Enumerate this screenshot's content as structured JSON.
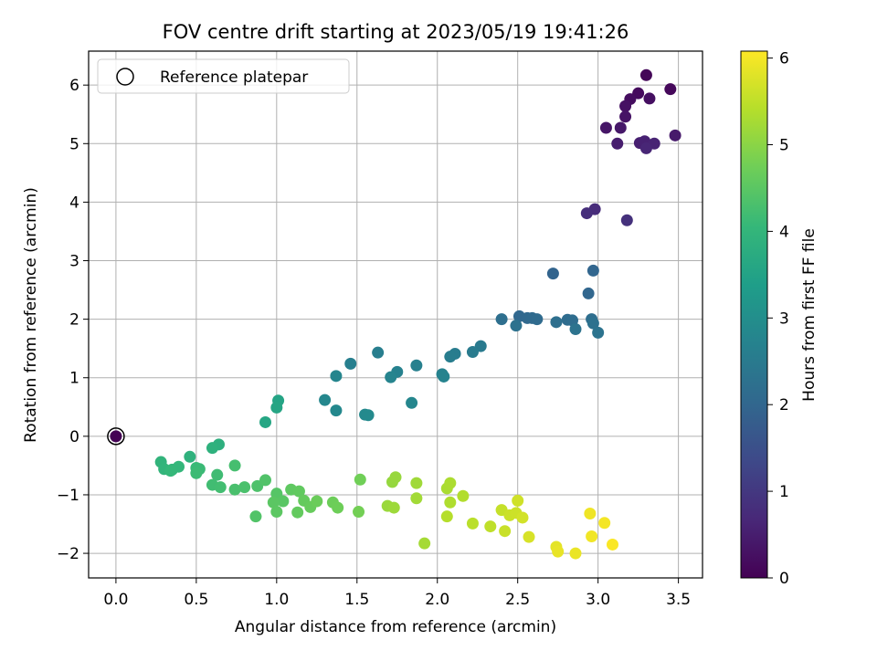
{
  "chart_data": {
    "type": "scatter",
    "title": "FOV centre drift starting at 2023/05/19 19:41:26",
    "xlabel": "Angular distance from reference (arcmin)",
    "ylabel": "Rotation from reference (arcmin)",
    "xlim": [
      -0.17,
      3.65
    ],
    "ylim": [
      -2.42,
      6.58
    ],
    "xticks": [
      0.0,
      0.5,
      1.0,
      1.5,
      2.0,
      2.5,
      3.0,
      3.5
    ],
    "xtick_labels": [
      "0.0",
      "0.5",
      "1.0",
      "1.5",
      "2.0",
      "2.5",
      "3.0",
      "3.5"
    ],
    "yticks": [
      -2,
      -1,
      0,
      1,
      2,
      3,
      4,
      5,
      6
    ],
    "ytick_labels": [
      "−2",
      "−1",
      "0",
      "1",
      "2",
      "3",
      "4",
      "5",
      "6"
    ],
    "grid": true,
    "legend": {
      "position": "top-left",
      "entries": [
        "Reference platepar"
      ]
    },
    "colorbar": {
      "label": "Hours from first FF file",
      "range": [
        0,
        6.08
      ],
      "ticks": [
        0,
        1,
        2,
        3,
        4,
        5,
        6
      ],
      "tick_labels": [
        "0",
        "1",
        "2",
        "3",
        "4",
        "5",
        "6"
      ],
      "colormap": "viridis",
      "stops": [
        "#440154",
        "#482878",
        "#3e4989",
        "#31688e",
        "#26828e",
        "#1f9e89",
        "#35b779",
        "#6ece58",
        "#b5de2b",
        "#fde725"
      ]
    },
    "reference": {
      "x": 0.0,
      "y": 0.0,
      "c": 0.0
    },
    "points": [
      [
        0.0,
        0.0,
        0.0
      ],
      [
        3.3,
        6.17,
        0.08
      ],
      [
        3.45,
        5.93,
        0.12
      ],
      [
        3.25,
        5.86,
        0.16
      ],
      [
        3.2,
        5.76,
        0.2
      ],
      [
        3.32,
        5.77,
        0.24
      ],
      [
        3.17,
        5.64,
        0.28
      ],
      [
        3.17,
        5.46,
        0.32
      ],
      [
        3.05,
        5.27,
        0.36
      ],
      [
        3.14,
        5.27,
        0.4
      ],
      [
        3.48,
        5.14,
        0.44
      ],
      [
        3.12,
        5.0,
        0.48
      ],
      [
        3.26,
        5.01,
        0.52
      ],
      [
        3.29,
        5.04,
        0.56
      ],
      [
        3.35,
        5.0,
        0.6
      ],
      [
        3.3,
        4.92,
        0.64
      ],
      [
        2.98,
        3.88,
        0.75
      ],
      [
        2.93,
        3.81,
        0.8
      ],
      [
        3.18,
        3.69,
        0.85
      ],
      [
        2.72,
        2.78,
        1.95
      ],
      [
        2.97,
        2.83,
        1.98
      ],
      [
        2.94,
        2.44,
        2.0
      ],
      [
        2.51,
        2.05,
        2.02
      ],
      [
        2.56,
        2.02,
        2.05
      ],
      [
        2.59,
        2.02,
        2.08
      ],
      [
        2.62,
        2.0,
        2.1
      ],
      [
        2.81,
        1.99,
        2.12
      ],
      [
        2.84,
        1.98,
        2.15
      ],
      [
        2.96,
        2.0,
        2.18
      ],
      [
        2.4,
        2.0,
        2.2
      ],
      [
        2.74,
        1.95,
        2.22
      ],
      [
        2.97,
        1.93,
        2.25
      ],
      [
        2.49,
        1.89,
        2.28
      ],
      [
        2.86,
        1.83,
        2.3
      ],
      [
        3.0,
        1.77,
        2.32
      ],
      [
        2.27,
        1.54,
        2.5
      ],
      [
        2.22,
        1.44,
        2.52
      ],
      [
        2.11,
        1.41,
        2.55
      ],
      [
        2.08,
        1.36,
        2.58
      ],
      [
        1.63,
        1.43,
        2.6
      ],
      [
        1.46,
        1.24,
        2.62
      ],
      [
        1.87,
        1.21,
        2.65
      ],
      [
        1.75,
        1.1,
        2.68
      ],
      [
        2.03,
        1.06,
        2.7
      ],
      [
        2.04,
        1.02,
        2.72
      ],
      [
        1.71,
        1.01,
        2.75
      ],
      [
        1.37,
        1.03,
        2.78
      ],
      [
        1.84,
        0.57,
        2.8
      ],
      [
        1.3,
        0.62,
        2.82
      ],
      [
        1.37,
        0.44,
        2.85
      ],
      [
        1.55,
        0.37,
        2.88
      ],
      [
        1.57,
        0.36,
        2.9
      ],
      [
        1.01,
        0.61,
        3.55
      ],
      [
        1.0,
        0.49,
        3.58
      ],
      [
        0.93,
        0.24,
        3.6
      ],
      [
        0.64,
        -0.14,
        3.85
      ],
      [
        0.6,
        -0.2,
        3.88
      ],
      [
        0.46,
        -0.35,
        3.9
      ],
      [
        0.28,
        -0.44,
        3.95
      ],
      [
        0.3,
        -0.56,
        3.98
      ],
      [
        0.35,
        -0.57,
        4.0
      ],
      [
        0.39,
        -0.52,
        4.02
      ],
      [
        0.34,
        -0.59,
        4.05
      ],
      [
        0.5,
        -0.54,
        4.1
      ],
      [
        0.52,
        -0.56,
        4.12
      ],
      [
        0.5,
        -0.63,
        4.15
      ],
      [
        0.63,
        -0.66,
        4.18
      ],
      [
        0.6,
        -0.83,
        4.2
      ],
      [
        0.65,
        -0.87,
        4.22
      ],
      [
        0.74,
        -0.5,
        4.25
      ],
      [
        0.74,
        -0.91,
        4.3
      ],
      [
        0.8,
        -0.87,
        4.32
      ],
      [
        0.88,
        -0.85,
        4.35
      ],
      [
        0.93,
        -0.75,
        4.38
      ],
      [
        0.87,
        -1.37,
        4.4
      ],
      [
        1.0,
        -0.98,
        4.45
      ],
      [
        1.04,
        -1.11,
        4.48
      ],
      [
        0.98,
        -1.13,
        4.5
      ],
      [
        1.0,
        -1.29,
        4.52
      ],
      [
        1.09,
        -0.91,
        4.55
      ],
      [
        1.14,
        -0.94,
        4.58
      ],
      [
        1.13,
        -1.3,
        4.6
      ],
      [
        1.17,
        -1.1,
        4.62
      ],
      [
        1.21,
        -1.21,
        4.65
      ],
      [
        1.25,
        -1.11,
        4.68
      ],
      [
        1.35,
        -1.13,
        4.7
      ],
      [
        1.38,
        -1.22,
        4.72
      ],
      [
        1.52,
        -0.74,
        4.75
      ],
      [
        1.51,
        -1.29,
        4.78
      ],
      [
        1.72,
        -0.78,
        5.1
      ],
      [
        1.74,
        -0.7,
        5.12
      ],
      [
        1.69,
        -1.19,
        5.15
      ],
      [
        1.73,
        -1.22,
        5.18
      ],
      [
        1.87,
        -0.8,
        5.2
      ],
      [
        1.87,
        -1.06,
        5.22
      ],
      [
        1.92,
        -1.83,
        5.25
      ],
      [
        2.06,
        -0.89,
        5.3
      ],
      [
        2.08,
        -0.8,
        5.32
      ],
      [
        2.08,
        -1.13,
        5.35
      ],
      [
        2.16,
        -1.02,
        5.38
      ],
      [
        2.06,
        -1.37,
        5.4
      ],
      [
        2.22,
        -1.49,
        5.45
      ],
      [
        2.33,
        -1.54,
        5.5
      ],
      [
        2.4,
        -1.26,
        5.55
      ],
      [
        2.42,
        -1.62,
        5.58
      ],
      [
        2.45,
        -1.35,
        5.6
      ],
      [
        2.49,
        -1.31,
        5.62
      ],
      [
        2.5,
        -1.1,
        5.65
      ],
      [
        2.53,
        -1.39,
        5.68
      ],
      [
        2.57,
        -1.72,
        5.72
      ],
      [
        2.74,
        -1.89,
        5.85
      ],
      [
        2.75,
        -1.97,
        5.88
      ],
      [
        2.86,
        -2.0,
        5.9
      ],
      [
        2.95,
        -1.32,
        5.95
      ],
      [
        2.96,
        -1.71,
        5.97
      ],
      [
        3.04,
        -1.48,
        6.0
      ],
      [
        3.09,
        -1.85,
        6.05
      ]
    ]
  }
}
